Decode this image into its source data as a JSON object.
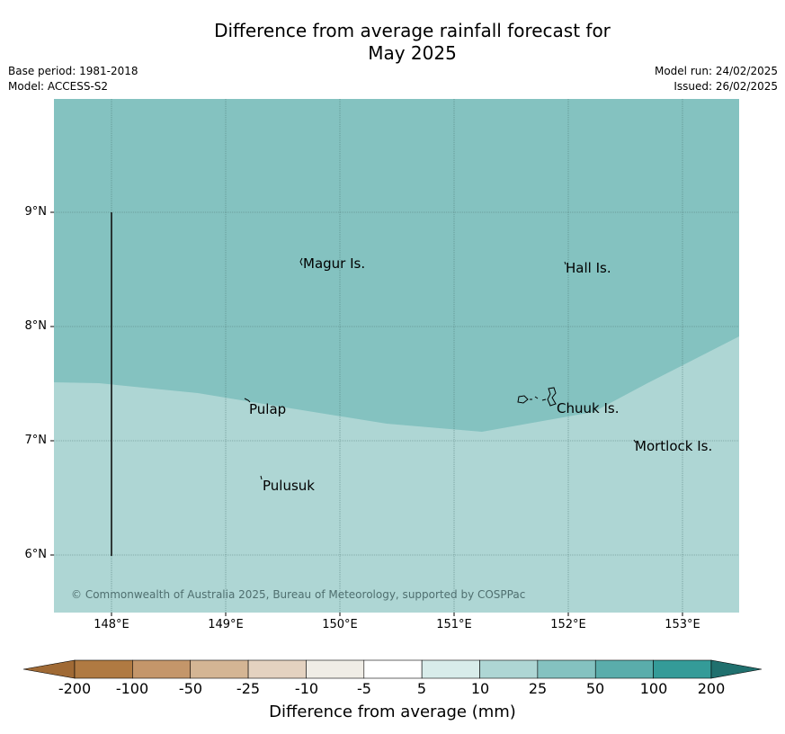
{
  "title_line1": "Difference from average rainfall forecast for",
  "title_line2": "May 2025",
  "base_period": "Base period: 1981-2018",
  "model": "Model: ACCESS-S2",
  "model_run": "Model run: 24/02/2025",
  "issued": "Issued: 26/02/2025",
  "lat_labels": [
    "9°N",
    "8°N",
    "7°N",
    "6°N"
  ],
  "lon_labels": [
    "148°E",
    "149°E",
    "150°E",
    "151°E",
    "152°E",
    "153°E"
  ],
  "places": {
    "magur": "Magur Is.",
    "hall": "Hall Is.",
    "pulap": "Pulap",
    "chuuk": "Chuuk Is.",
    "pulusuk": "Pulusuk",
    "mortlock": "Mortlock Is."
  },
  "copyright": "© Commonwealth of Australia 2025, Bureau of Meteorology, supported by COSPPac",
  "colorbar": {
    "title": "Difference from average (mm)",
    "labels": [
      "-200",
      "-100",
      "-50",
      "-25",
      "-10",
      "-5",
      "5",
      "10",
      "25",
      "50",
      "100",
      "200"
    ],
    "colors": [
      "#a06a35",
      "#b07a42",
      "#c4966a",
      "#d4b594",
      "#e4d2c0",
      "#f0ede6",
      "#ffffff",
      "#d8ecea",
      "#aed6d4",
      "#84c2c0",
      "#5aadab",
      "#349b98",
      "#20706e"
    ]
  },
  "map": {
    "region_colors": {
      "25_to_50": "#84c2c0",
      "10_to_25": "#aed6d4"
    }
  }
}
